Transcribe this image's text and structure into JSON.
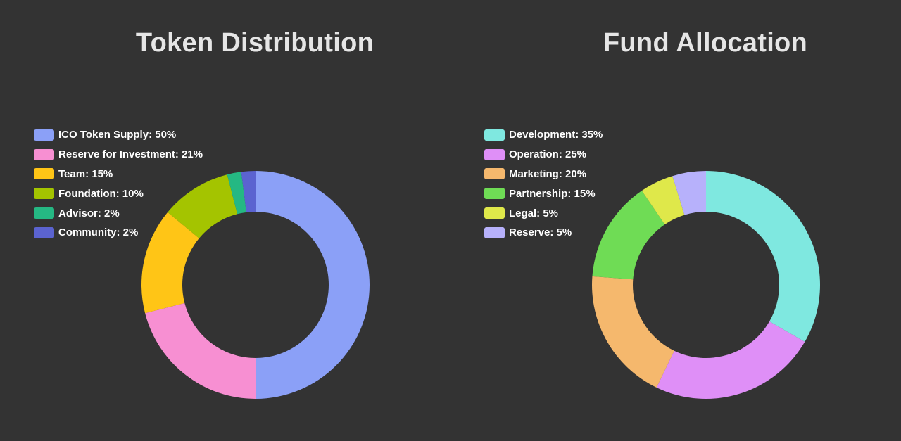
{
  "chart_data": [
    {
      "type": "pie",
      "variant": "donut",
      "title": "Token Distribution",
      "legend_position": "top-left",
      "series": [
        {
          "label": "ICO Token Supply: 50%",
          "value": 50,
          "color": "#8ba0f7"
        },
        {
          "label": "Reserve for Investment: 21%",
          "value": 21,
          "color": "#f78fd2"
        },
        {
          "label": "Team: 15%",
          "value": 15,
          "color": "#ffc516"
        },
        {
          "label": "Foundation: 10%",
          "value": 10,
          "color": "#a4c400"
        },
        {
          "label": "Advisor: 2%",
          "value": 2,
          "color": "#25b883"
        },
        {
          "label": "Community: 2%",
          "value": 2,
          "color": "#5b63d0"
        }
      ]
    },
    {
      "type": "pie",
      "variant": "donut",
      "title": "Fund Allocation",
      "legend_position": "top-left",
      "series": [
        {
          "label": "Development: 35%",
          "value": 35,
          "color": "#7fe8e0"
        },
        {
          "label": "Operation: 25%",
          "value": 25,
          "color": "#df8ff7"
        },
        {
          "label": "Marketing: 20%",
          "value": 20,
          "color": "#f5b86d"
        },
        {
          "label": "Partnership: 15%",
          "value": 15,
          "color": "#6fdc55"
        },
        {
          "label": "Legal: 5%",
          "value": 5,
          "color": "#dfe84a"
        },
        {
          "label": "Reserve: 5%",
          "value": 5,
          "color": "#b7b1fb"
        }
      ]
    }
  ]
}
